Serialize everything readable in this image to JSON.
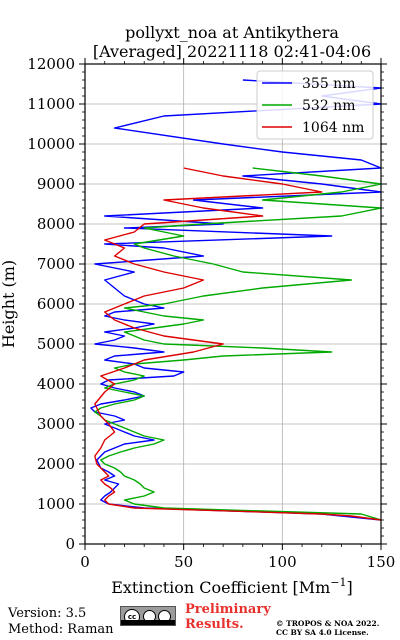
{
  "chart_data": {
    "type": "line",
    "title": "pollyxt_noa at Antikythera",
    "subtitle": "[Averaged] 20221118 02:41-04:06",
    "xlabel": "Extinction Coefficient [Mm",
    "xlabel_sup": "−1",
    "xlabel_end": "]",
    "ylabel": "Height (m)",
    "xlim": [
      0,
      150
    ],
    "ylim": [
      0,
      12000
    ],
    "x_ticks": [
      0,
      50,
      100,
      150
    ],
    "y_ticks": [
      0,
      1000,
      2000,
      3000,
      4000,
      5000,
      6000,
      7000,
      8000,
      9000,
      10000,
      11000,
      12000
    ],
    "grid": true,
    "legend_position": "top-right",
    "series": [
      {
        "name": "355 nm",
        "color": "#0000ff",
        "y": [
          600,
          750,
          900,
          1000,
          1100,
          1200,
          1300,
          1400,
          1500,
          1600,
          1700,
          1800,
          1900,
          2000,
          2100,
          2200,
          2300,
          2400,
          2500,
          2600,
          2700,
          2800,
          2900,
          3000,
          3100,
          3200,
          3300,
          3400,
          3500,
          3600,
          3700,
          3800,
          3900,
          4000,
          4100,
          4200,
          4300,
          4400,
          4500,
          4600,
          4700,
          4800,
          4900,
          5000,
          5100,
          5200,
          5300,
          5400,
          5500,
          5600,
          5700,
          5800,
          5900,
          6000,
          6200,
          6400,
          6600,
          6800,
          7000,
          7200,
          7400,
          7500,
          7700,
          7900,
          8000,
          8200,
          8400,
          8600,
          8800,
          9000,
          9200,
          9400,
          9600,
          9800,
          10000,
          10400,
          10700,
          11000,
          11200,
          11400,
          11600
        ],
        "x": [
          150,
          120,
          30,
          12,
          8,
          10,
          13,
          15,
          17,
          10,
          15,
          12,
          8,
          7,
          6,
          8,
          10,
          15,
          20,
          35,
          25,
          20,
          15,
          10,
          20,
          15,
          5,
          3,
          8,
          20,
          30,
          25,
          15,
          8,
          12,
          45,
          50,
          30,
          25,
          10,
          15,
          40,
          25,
          5,
          15,
          20,
          10,
          25,
          35,
          20,
          10,
          15,
          40,
          30,
          20,
          15,
          10,
          25,
          5,
          60,
          40,
          10,
          125,
          20,
          70,
          10,
          90,
          55,
          150,
          120,
          80,
          150,
          140,
          100,
          70,
          15,
          40,
          150,
          120,
          150,
          80
        ]
      },
      {
        "name": "532 nm",
        "color": "#00aa00",
        "y": [
          600,
          750,
          900,
          1000,
          1100,
          1200,
          1300,
          1400,
          1500,
          1600,
          1700,
          1800,
          1900,
          2000,
          2100,
          2200,
          2300,
          2400,
          2500,
          2600,
          2700,
          2800,
          2900,
          3000,
          3100,
          3200,
          3300,
          3400,
          3500,
          3600,
          3700,
          3800,
          3900,
          4000,
          4100,
          4200,
          4300,
          4400,
          4500,
          4600,
          4700,
          4800,
          4900,
          5000,
          5100,
          5200,
          5300,
          5400,
          5500,
          5600,
          5700,
          5800,
          5900,
          6000,
          6200,
          6400,
          6600,
          6800,
          7000,
          7200,
          7400,
          7500,
          7700,
          7900,
          8000,
          8200,
          8400,
          8600,
          8800,
          9000,
          9200,
          9400
        ],
        "x": [
          150,
          140,
          40,
          25,
          20,
          30,
          35,
          30,
          28,
          25,
          20,
          18,
          15,
          10,
          8,
          12,
          18,
          25,
          35,
          40,
          30,
          25,
          20,
          15,
          10,
          8,
          5,
          8,
          15,
          25,
          30,
          20,
          10,
          15,
          25,
          30,
          20,
          15,
          25,
          50,
          70,
          125,
          90,
          40,
          30,
          25,
          20,
          35,
          50,
          60,
          40,
          30,
          20,
          40,
          60,
          90,
          135,
          80,
          65,
          45,
          30,
          25,
          50,
          30,
          60,
          130,
          150,
          90,
          130,
          150,
          120,
          85
        ]
      },
      {
        "name": "1064 nm",
        "color": "#dd0000",
        "y": [
          600,
          700,
          750,
          900,
          1000,
          1100,
          1200,
          1300,
          1400,
          1500,
          1600,
          1700,
          1800,
          1900,
          2000,
          2200,
          2400,
          2600,
          2800,
          3000,
          3200,
          3500,
          3800,
          4000,
          4200,
          4400,
          4600,
          4800,
          5000,
          5200,
          5400,
          5600,
          5800,
          6000,
          6200,
          6400,
          6600,
          6800,
          7000,
          7200,
          7400,
          7600,
          7800,
          8000,
          8200,
          8400,
          8600,
          8800,
          9000,
          9200,
          9400
        ],
        "x": [
          150,
          135,
          120,
          25,
          12,
          10,
          12,
          15,
          13,
          10,
          8,
          12,
          10,
          8,
          6,
          5,
          8,
          10,
          15,
          12,
          8,
          5,
          10,
          15,
          8,
          20,
          30,
          55,
          70,
          40,
          25,
          15,
          10,
          20,
          30,
          50,
          60,
          40,
          25,
          15,
          20,
          10,
          25,
          30,
          90,
          60,
          40,
          120,
          100,
          70,
          50
        ]
      }
    ]
  },
  "footer": {
    "version": "Version: 3.5",
    "method": "Method: Raman",
    "preliminary_line1": "Preliminary",
    "preliminary_line2": "Results.",
    "copyright_line1": "© TROPOS & NOA 2022.",
    "copyright_line2": "CC BY SA 4.0 License.",
    "license_badge": "cc"
  }
}
